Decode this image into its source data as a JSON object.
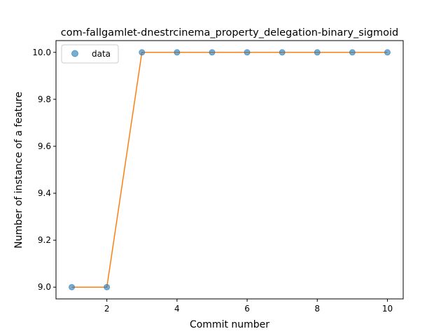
{
  "chart_data": {
    "type": "line",
    "title": "com-fallgamlet-dnestrcinema_property_delegation-binary_sigmoid",
    "xlabel": "Commit number",
    "ylabel": "Number of instance of a feature",
    "x": [
      1,
      2,
      3,
      4,
      5,
      6,
      7,
      8,
      9,
      10
    ],
    "xlim": [
      0.55,
      10.45
    ],
    "ylim": [
      8.95,
      10.05
    ],
    "xticks": [
      2,
      4,
      6,
      8,
      10
    ],
    "yticks": [
      9.0,
      9.2,
      9.4,
      9.6,
      9.8,
      10.0
    ],
    "ytick_labels": [
      "9.0",
      "9.2",
      "9.4",
      "9.6",
      "9.8",
      "10.0"
    ],
    "grid": false,
    "legend_position": "top-left",
    "series": [
      {
        "name": "data",
        "style": "scatter",
        "color": "#1f77b4",
        "values": [
          9,
          9,
          10,
          10,
          10,
          10,
          10,
          10,
          10,
          10
        ]
      },
      {
        "style": "line",
        "color": "#ff7f0e",
        "values": [
          9,
          9,
          10,
          10,
          10,
          10,
          10,
          10,
          10,
          10
        ]
      }
    ]
  }
}
